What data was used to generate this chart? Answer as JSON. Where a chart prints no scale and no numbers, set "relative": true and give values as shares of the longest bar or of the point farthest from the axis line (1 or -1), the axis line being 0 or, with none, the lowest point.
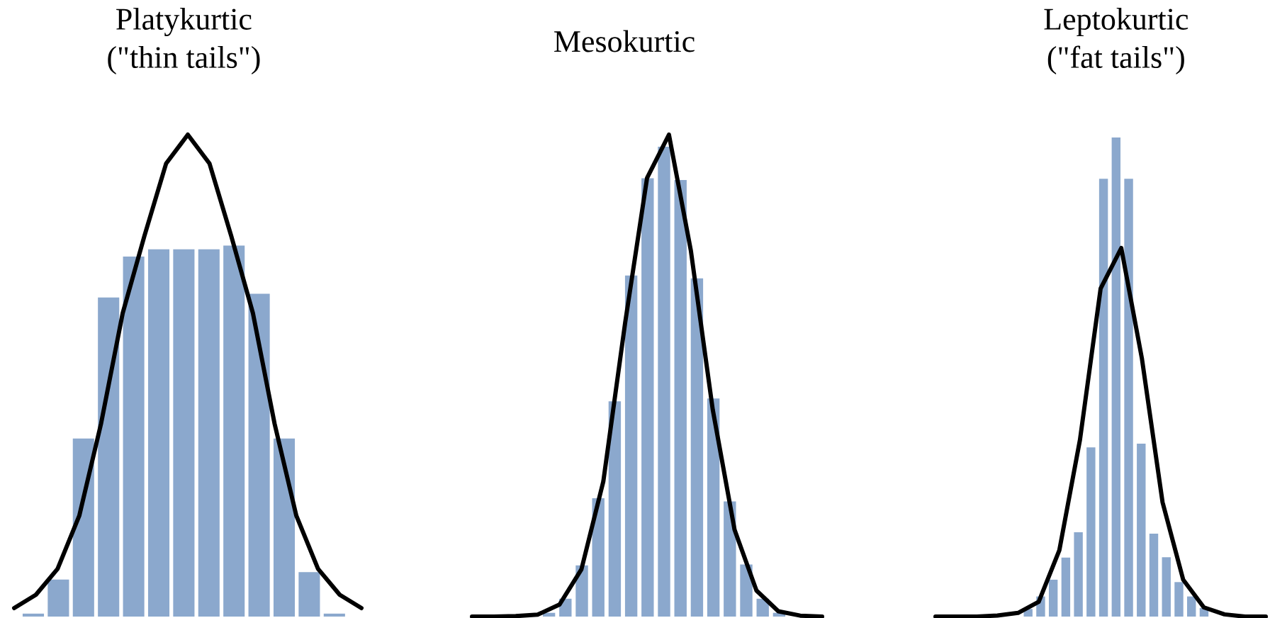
{
  "chart_data": [
    {
      "type": "bar",
      "relative": true,
      "title": "Platykurtic",
      "subtitle": "(\"thin tails\")",
      "categories": [
        null,
        null,
        null,
        null,
        null,
        null,
        null,
        null,
        null,
        null,
        null,
        null,
        null
      ],
      "series": [
        {
          "color": "#8ba8cd",
          "values": [
            0.008,
            0.1,
            0.48,
            0.86,
            0.97,
            0.99,
            0.99,
            0.99,
            1.0,
            0.87,
            0.48,
            0.12,
            0.008
          ]
        }
      ]
    },
    {
      "type": "line",
      "relative": true,
      "categories": [
        null,
        null,
        null,
        null,
        null,
        null,
        null,
        null,
        null,
        null,
        null,
        null,
        null,
        null,
        null,
        null,
        null
      ],
      "series": [
        {
          "color": "#000000",
          "values": [
            0,
            0.028,
            0.083,
            0.195,
            0.389,
            0.623,
            0.786,
            0.939,
            1.0,
            0.939,
            0.786,
            0.623,
            0.389,
            0.195,
            0.083,
            0.028,
            0
          ]
        }
      ]
    },
    {
      "type": "bar",
      "relative": true,
      "title": "Mesokurtic",
      "categories": [
        null,
        null,
        null,
        null,
        null,
        null,
        null,
        null,
        null,
        null,
        null,
        null,
        null,
        null,
        null
      ],
      "series": [
        {
          "color": "#8ba8cd",
          "values": [
            0.008,
            0.038,
            0.109,
            0.252,
            0.458,
            0.726,
            0.933,
            1.0,
            0.929,
            0.72,
            0.464,
            0.245,
            0.111,
            0.038,
            0.008
          ]
        }
      ]
    },
    {
      "type": "line",
      "relative": true,
      "categories": [
        null,
        null,
        null,
        null,
        null,
        null,
        null,
        null,
        null,
        null,
        null,
        null,
        null,
        null,
        null,
        null,
        null
      ],
      "series": [
        {
          "color": "#000000",
          "values": [
            0,
            0,
            0.001,
            0.004,
            0.025,
            0.098,
            0.28,
            0.61,
            0.91,
            1.0,
            0.76,
            0.43,
            0.18,
            0.054,
            0.011,
            0.002,
            0
          ]
        }
      ]
    },
    {
      "type": "bar",
      "relative": true,
      "title": "Leptokurtic",
      "subtitle": "(\"fat tails\")",
      "categories": [
        null,
        null,
        null,
        null,
        null,
        null,
        null,
        null,
        null,
        null,
        null,
        null,
        null,
        null,
        null
      ],
      "series": [
        {
          "color": "#8ba8cd",
          "values": [
            0.016,
            0.042,
            0.077,
            0.123,
            0.176,
            0.353,
            0.914,
            1.0,
            0.914,
            0.361,
            0.173,
            0.124,
            0.072,
            0.042,
            0.018
          ]
        }
      ]
    },
    {
      "type": "line",
      "relative": true,
      "categories": [
        null,
        null,
        null,
        null,
        null,
        null,
        null,
        null,
        null,
        null,
        null,
        null,
        null,
        null,
        null,
        null,
        null
      ],
      "series": [
        {
          "color": "#000000",
          "values": [
            0,
            0,
            0,
            0.003,
            0.01,
            0.04,
            0.18,
            0.48,
            0.89,
            1.0,
            0.7,
            0.31,
            0.1,
            0.025,
            0.006,
            0,
            0
          ]
        }
      ]
    }
  ]
}
